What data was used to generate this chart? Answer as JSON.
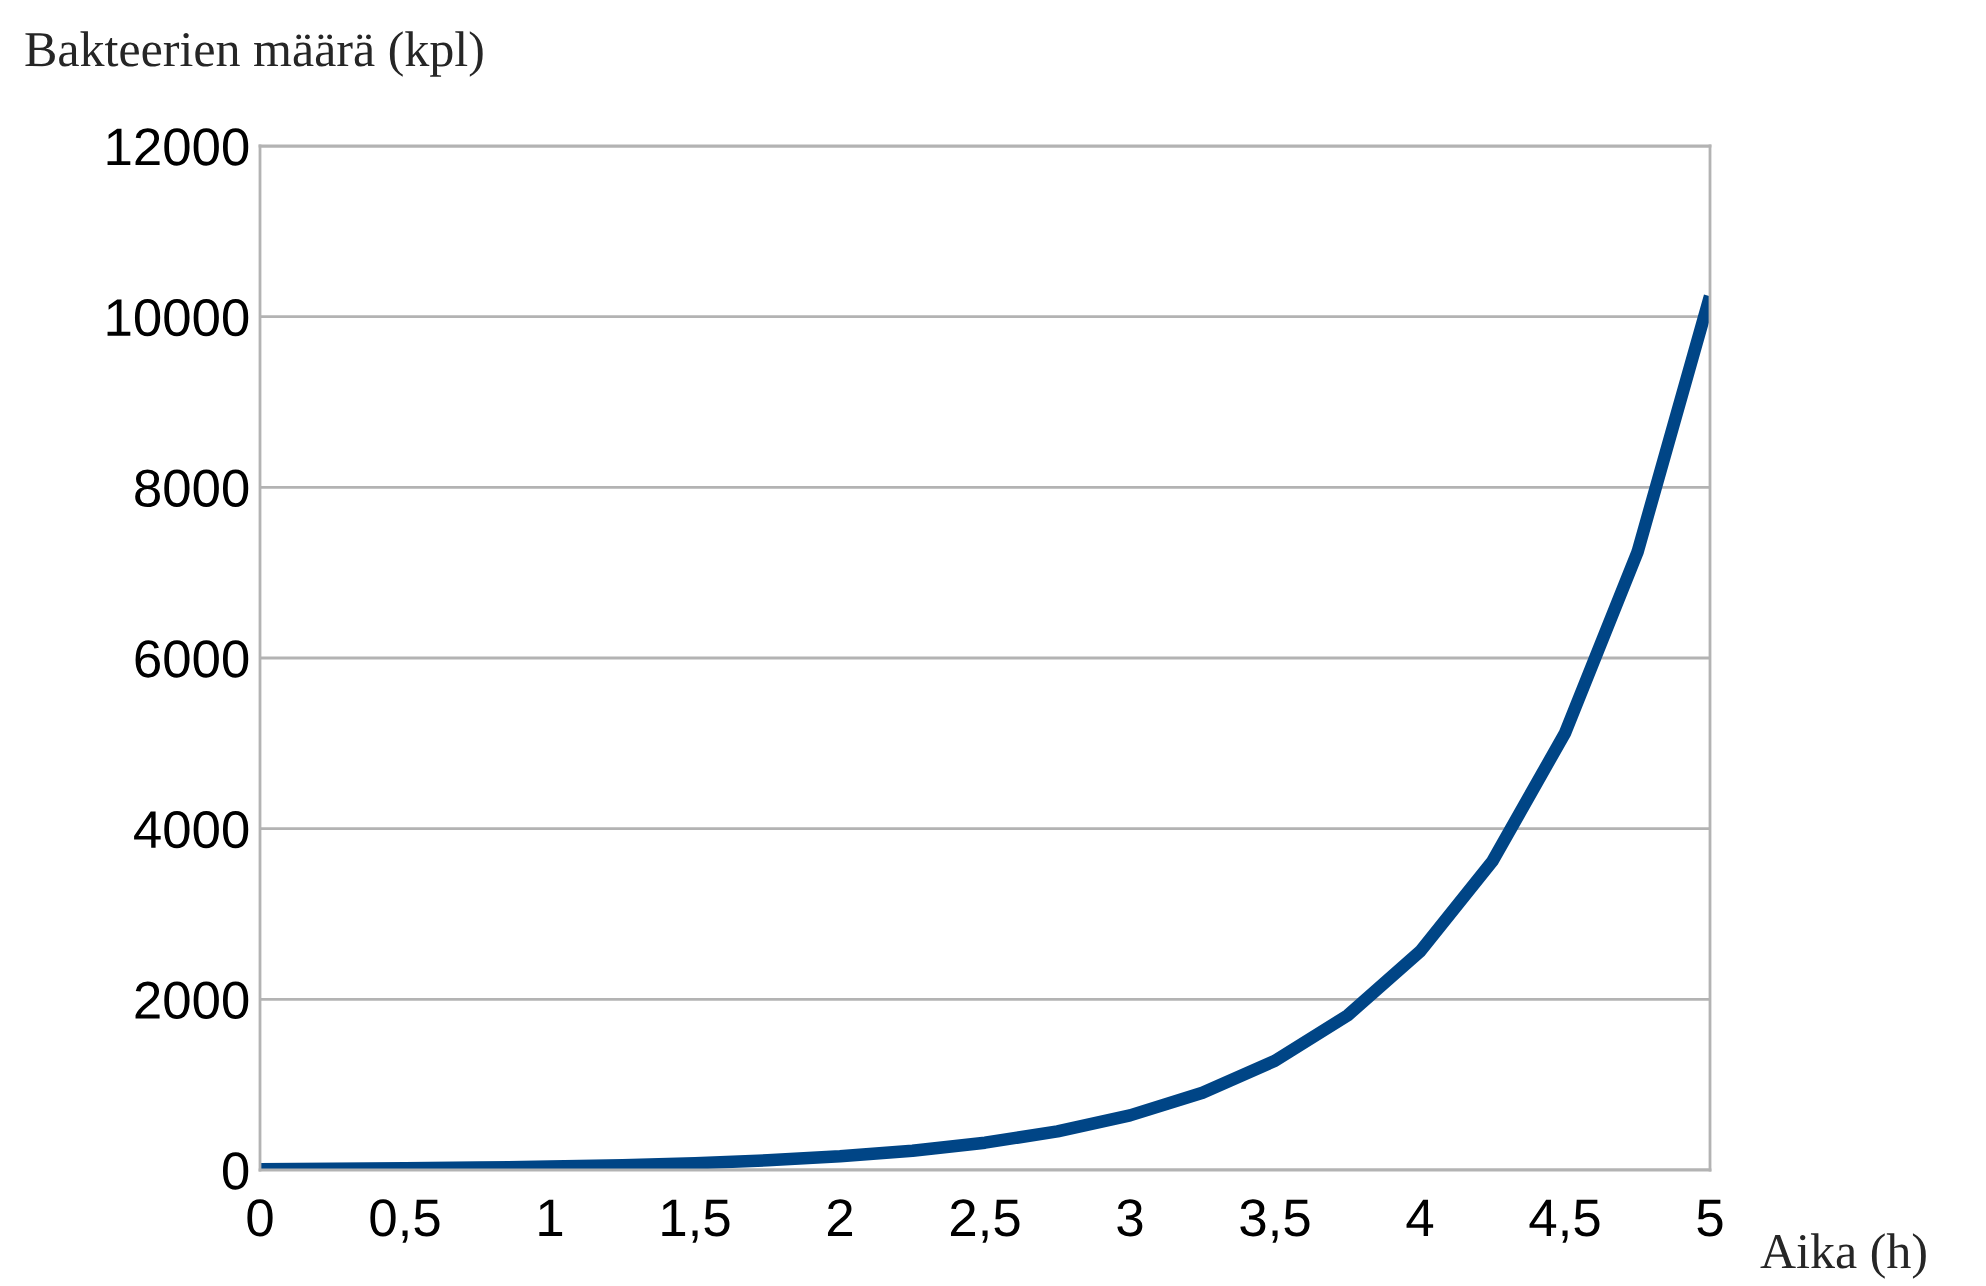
{
  "chart_data": {
    "type": "line",
    "xlabel": "Aika (h)",
    "ylabel": "Bakteerien määrä (kpl)",
    "x": [
      0,
      0.25,
      0.5,
      0.75,
      1,
      1.25,
      1.5,
      1.75,
      2,
      2.25,
      2.5,
      2.75,
      3,
      3.25,
      3.5,
      3.75,
      4,
      4.25,
      4.5,
      4.75,
      5
    ],
    "series": [
      {
        "color": "#004586",
        "values": [
          10,
          14,
          20,
          28,
          40,
          57,
          80,
          113,
          160,
          226,
          320,
          453,
          640,
          905,
          1280,
          1810,
          2560,
          3620,
          5120,
          7240,
          10240
        ]
      }
    ],
    "xlim": [
      0,
      5
    ],
    "xticks": [
      {
        "value": 0,
        "label": "0"
      },
      {
        "value": 0.5,
        "label": "0,5"
      },
      {
        "value": 1,
        "label": "1"
      },
      {
        "value": 1.5,
        "label": "1,5"
      },
      {
        "value": 2,
        "label": "2"
      },
      {
        "value": 2.5,
        "label": "2,5"
      },
      {
        "value": 3,
        "label": "3"
      },
      {
        "value": 3.5,
        "label": "3,5"
      },
      {
        "value": 4,
        "label": "4"
      },
      {
        "value": 4.5,
        "label": "4,5"
      },
      {
        "value": 5,
        "label": "5"
      }
    ],
    "ylim": [
      0,
      12000
    ],
    "yticks": [
      0,
      2000,
      4000,
      6000,
      8000,
      10000,
      12000
    ],
    "grid": "y",
    "legend": false,
    "marker": "none",
    "line_style": "solid"
  }
}
